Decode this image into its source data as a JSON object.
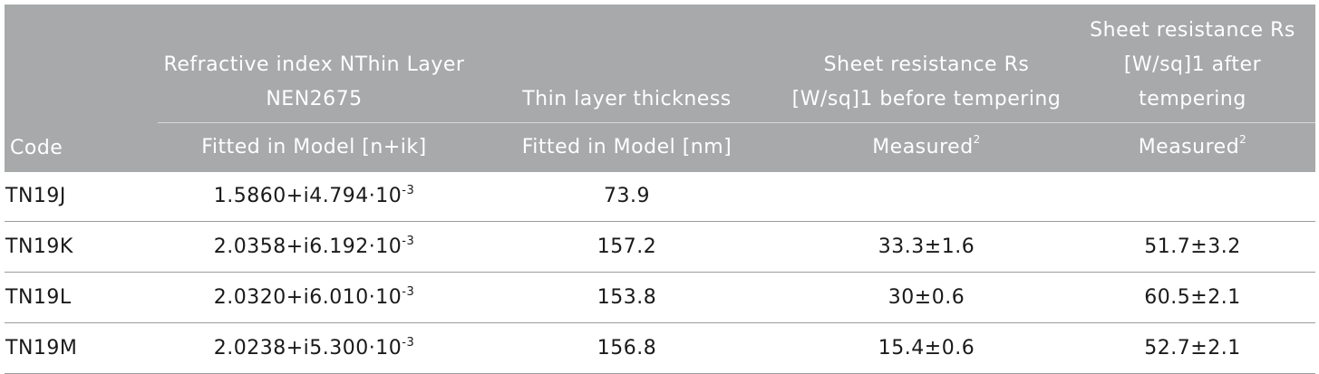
{
  "header": {
    "code": "Code",
    "refractive_index_title": "Refractive index NThin Layer NEN2675",
    "thickness_title": "Thin layer thickness",
    "sheet_before_title": "Sheet resistance Rs [W/sq]1 before tempering",
    "sheet_after_title": "Sheet resistance Rs [W/sq]1 after tempering",
    "refractive_index_sub": "Fitted in Model [n+ik]",
    "thickness_sub": "Fitted in Model [nm]",
    "sheet_before_sub": "Measured",
    "sheet_before_sub_sup": "2",
    "sheet_after_sub": "Measured",
    "sheet_after_sub_sup": "2"
  },
  "rows": [
    {
      "code": "TN19J",
      "refractive_index": "1.5860+i4.794·10",
      "refractive_exp": "-3",
      "thickness": "73.9",
      "rs_before": "",
      "rs_after": ""
    },
    {
      "code": "TN19K",
      "refractive_index": "2.0358+i6.192·10",
      "refractive_exp": "-3",
      "thickness": "157.2",
      "rs_before": "33.3±1.6",
      "rs_after": "51.7±3.2"
    },
    {
      "code": "TN19L",
      "refractive_index": "2.0320+i6.010·10",
      "refractive_exp": "-3",
      "thickness": "153.8",
      "rs_before": "30±0.6",
      "rs_after": "60.5±2.1"
    },
    {
      "code": "TN19M",
      "refractive_index": "2.0238+i5.300·10",
      "refractive_exp": "-3",
      "thickness": "156.8",
      "rs_before": "15.4±0.6",
      "rs_after": "52.7±2.1"
    }
  ]
}
